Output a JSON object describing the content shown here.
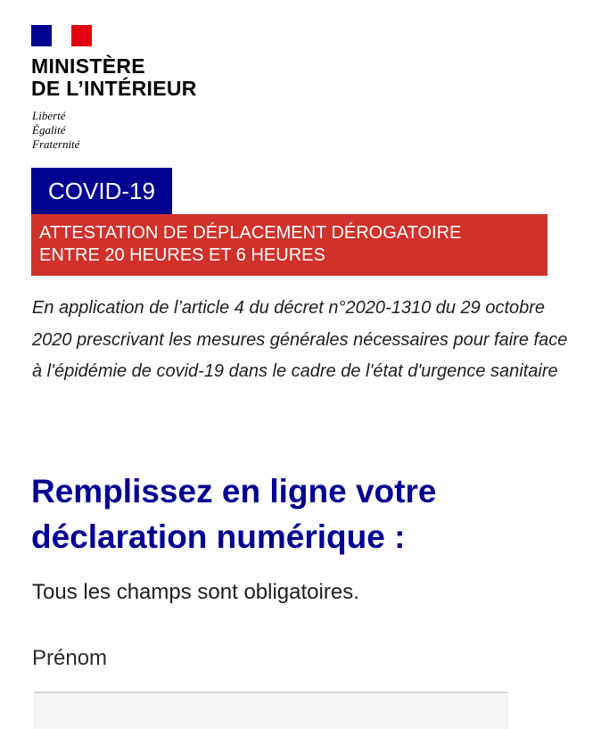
{
  "logo": {
    "ministry_line1": "MINISTÈRE",
    "ministry_line2": "DE L’INTÉRIEUR",
    "motto": [
      "Liberté",
      "Égalité",
      "Fraternité"
    ],
    "colors": {
      "blue": "#000091",
      "red": "#e1000f"
    }
  },
  "banner": {
    "tag": "COVID-19",
    "title_line1": "ATTESTATION DE DÉPLACEMENT DÉROGATOIRE",
    "title_line2": "ENTRE 20 HEURES ET 6 HEURES",
    "colors": {
      "tag_bg": "#000091",
      "title_bg": "#d0312b"
    }
  },
  "decree": "En application de l’article 4 du décret n°2020-1310 du 29 octobre 2020 prescrivant les mesures générales nécessaires pour faire face à l'épidémie de covid-19 dans le cadre de l'état d'urgence sanitaire",
  "form": {
    "heading_line1": "Remplissez en ligne votre",
    "heading_line2": "déclaration numérique :",
    "required_note": "Tous les champs sont obligatoires.",
    "firstname_label": "Prénom",
    "firstname_value": ""
  }
}
